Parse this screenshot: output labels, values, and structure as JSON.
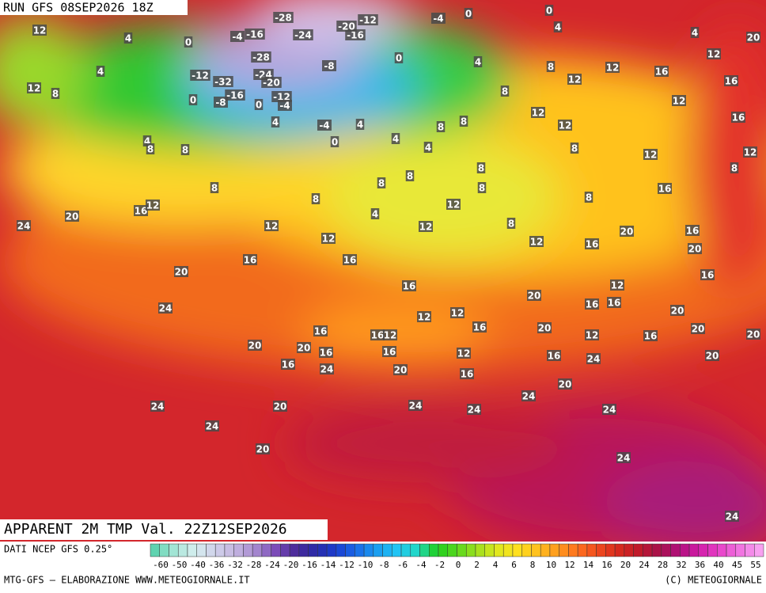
{
  "header": {
    "run": "RUN GFS 08SEP2026 18Z"
  },
  "map": {
    "title": "APPARENT 2M TMP Val. 22Z12SEP2026",
    "labels": [
      12,
      4,
      0,
      4,
      12,
      8,
      -28,
      -4,
      -16,
      -24,
      -28,
      -12,
      -32,
      -24,
      -20,
      -16,
      -8,
      0,
      0,
      -12,
      -4,
      -8,
      -12,
      -16,
      -20,
      -4,
      0,
      0,
      4,
      0,
      4,
      8,
      12,
      12,
      16,
      4,
      20,
      12,
      16,
      12,
      16,
      12,
      8,
      8,
      12,
      12,
      4,
      -4,
      4,
      0,
      4,
      8,
      8,
      8,
      8,
      4,
      4,
      8,
      8,
      8,
      12,
      8,
      8,
      8,
      8,
      4,
      12,
      8,
      8,
      16,
      20,
      24,
      16,
      12,
      12,
      12,
      12,
      16,
      16,
      12,
      16,
      20,
      16,
      20,
      20,
      24,
      16,
      20,
      12,
      16,
      16,
      16,
      20,
      16,
      12,
      12,
      16,
      20,
      12,
      16,
      20,
      20,
      16,
      12,
      20,
      20,
      16,
      16,
      12,
      16,
      24,
      20,
      16,
      24,
      20,
      16,
      20,
      24,
      24,
      20,
      24,
      24,
      24,
      24,
      20,
      24,
      24
    ]
  },
  "legend": {
    "source": "DATI NCEP GFS 0.25°",
    "ticks": [
      -60,
      -50,
      -40,
      -36,
      -32,
      -28,
      -24,
      -20,
      -16,
      -14,
      -12,
      -10,
      -8,
      -6,
      -4,
      -2,
      0,
      2,
      4,
      6,
      8,
      10,
      12,
      14,
      16,
      20,
      24,
      28,
      32,
      36,
      40,
      45,
      55
    ]
  },
  "footer": {
    "credit": "MTG-GFS — ELABORAZIONE WWW.METEOGIORNALE.IT",
    "copyright": "(C) METEOGIORNALE"
  }
}
